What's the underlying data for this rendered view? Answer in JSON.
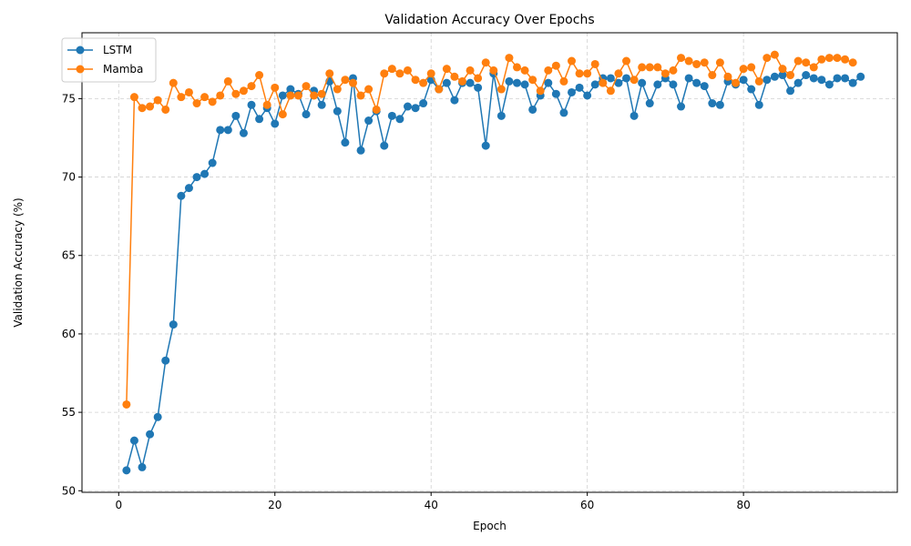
{
  "chart_data": {
    "type": "line",
    "title": "Validation Accuracy Over Epochs",
    "xlabel": "Epoch",
    "ylabel": "Validation Accuracy (%)",
    "xlim": [
      -4.7,
      99.7
    ],
    "ylim": [
      49.9,
      79.2
    ],
    "xticks": [
      0,
      20,
      40,
      60,
      80
    ],
    "yticks": [
      50,
      55,
      60,
      65,
      70,
      75
    ],
    "grid": true,
    "legend_position": "upper-left",
    "series": [
      {
        "name": "LSTM",
        "color": "#1f77b4",
        "x": [
          1,
          2,
          3,
          4,
          5,
          6,
          7,
          8,
          9,
          10,
          11,
          12,
          13,
          14,
          15,
          16,
          17,
          18,
          19,
          20,
          21,
          22,
          23,
          24,
          25,
          26,
          27,
          28,
          29,
          30,
          31,
          32,
          33,
          34,
          35,
          36,
          37,
          38,
          39,
          40,
          41,
          42,
          43,
          44,
          45,
          46,
          47,
          48,
          49,
          50,
          51,
          52,
          53,
          54,
          55,
          56,
          57,
          58,
          59,
          60,
          61,
          62,
          63,
          64,
          65,
          66,
          67,
          68,
          69,
          70,
          71,
          72,
          73,
          74,
          75,
          76,
          77,
          78,
          79,
          80,
          81,
          82,
          83,
          84,
          85,
          86,
          87,
          88,
          89,
          90,
          91,
          92,
          93,
          94,
          95
        ],
        "values": [
          51.3,
          53.2,
          51.5,
          53.6,
          54.7,
          58.3,
          60.6,
          68.8,
          69.3,
          70.0,
          70.2,
          70.9,
          73.0,
          73.0,
          73.9,
          72.8,
          74.6,
          73.7,
          74.4,
          73.4,
          75.2,
          75.6,
          75.3,
          74.0,
          75.5,
          74.6,
          76.1,
          74.2,
          72.2,
          76.3,
          71.7,
          73.6,
          74.2,
          72.0,
          73.9,
          73.7,
          74.5,
          74.4,
          74.7,
          76.2,
          75.6,
          76.0,
          74.9,
          76.0,
          76.0,
          75.7,
          72.0,
          76.6,
          73.9,
          76.1,
          76.0,
          75.9,
          74.3,
          75.2,
          76.0,
          75.3,
          74.1,
          75.4,
          75.7,
          75.2,
          75.9,
          76.3,
          76.3,
          76.0,
          76.3,
          73.9,
          76.0,
          74.7,
          75.9,
          76.3,
          75.9,
          74.5,
          76.3,
          76.0,
          75.8,
          74.7,
          74.6,
          76.1,
          75.9,
          76.2,
          75.6,
          74.6,
          76.2,
          76.4,
          76.5,
          75.5,
          76.0,
          76.5,
          76.3,
          76.2,
          75.9,
          76.3,
          76.3,
          76.0,
          76.4
        ]
      },
      {
        "name": "Mamba",
        "color": "#ff7f0e",
        "x": [
          1,
          2,
          3,
          4,
          5,
          6,
          7,
          8,
          9,
          10,
          11,
          12,
          13,
          14,
          15,
          16,
          17,
          18,
          19,
          20,
          21,
          22,
          23,
          24,
          25,
          26,
          27,
          28,
          29,
          30,
          31,
          32,
          33,
          34,
          35,
          36,
          37,
          38,
          39,
          40,
          41,
          42,
          43,
          44,
          45,
          46,
          47,
          48,
          49,
          50,
          51,
          52,
          53,
          54,
          55,
          56,
          57,
          58,
          59,
          60,
          61,
          62,
          63,
          64,
          65,
          66,
          67,
          68,
          69,
          70,
          71,
          72,
          73,
          74,
          75,
          76,
          77,
          78,
          79,
          80,
          81,
          82,
          83,
          84,
          85,
          86,
          87,
          88,
          89,
          90,
          91,
          92,
          93,
          94
        ],
        "values": [
          55.5,
          75.1,
          74.4,
          74.5,
          74.9,
          74.3,
          76.0,
          75.1,
          75.4,
          74.7,
          75.1,
          74.8,
          75.2,
          76.1,
          75.3,
          75.5,
          75.8,
          76.5,
          74.6,
          75.7,
          74.0,
          75.2,
          75.2,
          75.8,
          75.2,
          75.3,
          76.6,
          75.6,
          76.2,
          76.0,
          75.2,
          75.6,
          74.3,
          76.6,
          76.9,
          76.6,
          76.8,
          76.2,
          76.0,
          76.6,
          75.6,
          76.9,
          76.4,
          76.1,
          76.8,
          76.3,
          77.3,
          76.8,
          75.6,
          77.6,
          77.0,
          76.8,
          76.2,
          75.5,
          76.8,
          77.1,
          76.1,
          77.4,
          76.6,
          76.6,
          77.2,
          76.0,
          75.5,
          76.6,
          77.4,
          76.2,
          77.0,
          77.0,
          77.0,
          76.6,
          76.8,
          77.6,
          77.4,
          77.2,
          77.3,
          76.5,
          77.3,
          76.4,
          76.0,
          76.9,
          77.0,
          76.1,
          77.6,
          77.8,
          76.9,
          76.5,
          77.4,
          77.3,
          77.0,
          77.5,
          77.6,
          77.6,
          77.5,
          77.3
        ]
      }
    ]
  }
}
